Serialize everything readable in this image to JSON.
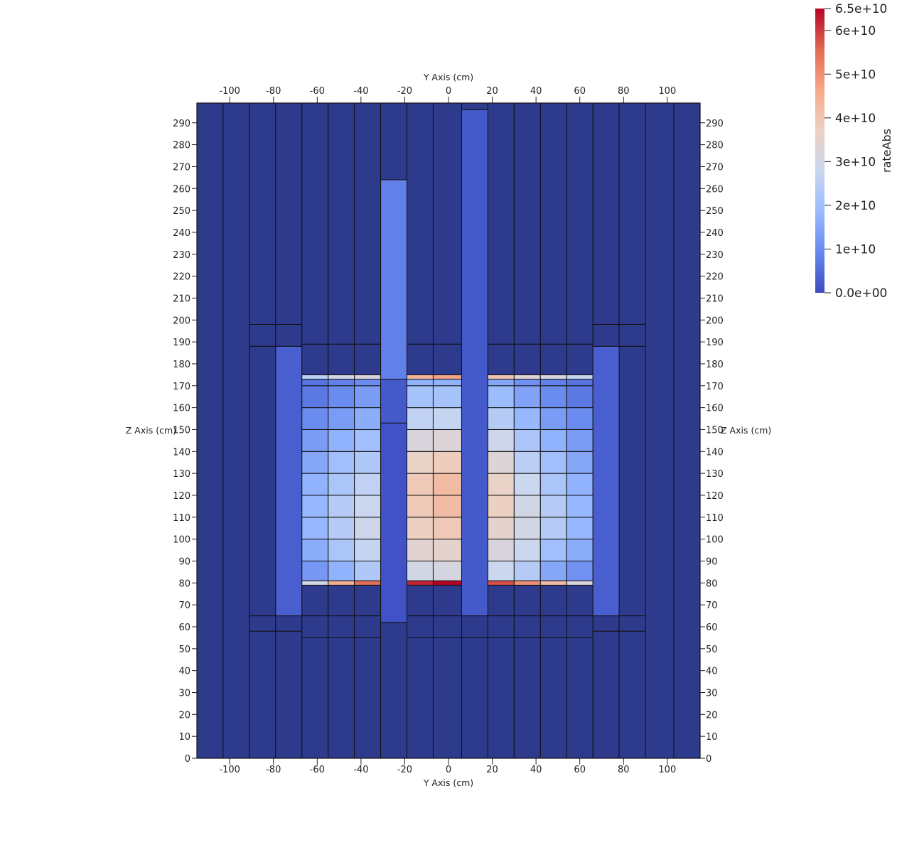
{
  "chart_data": {
    "type": "heatmap",
    "title": "",
    "x_axis": {
      "label": "Y Axis (cm)",
      "range": [
        -115,
        115
      ],
      "ticks": [
        -100,
        -80,
        -60,
        -40,
        -20,
        0,
        20,
        40,
        60,
        80,
        100
      ],
      "tick_labels": [
        "-100",
        "-80",
        "-60",
        "-40",
        "-20",
        "0",
        "20",
        "40",
        "60",
        "80",
        "100"
      ]
    },
    "y_axis": {
      "label": "Z Axis (cm)",
      "range": [
        0,
        299
      ],
      "ticks": [
        0,
        10,
        20,
        30,
        40,
        50,
        60,
        70,
        80,
        90,
        100,
        110,
        120,
        130,
        140,
        150,
        160,
        170,
        180,
        190,
        200,
        210,
        220,
        230,
        240,
        250,
        260,
        270,
        280,
        290
      ],
      "tick_labels": [
        "0",
        "10",
        "20",
        "30",
        "40",
        "50",
        "60",
        "70",
        "80",
        "90",
        "100",
        "110",
        "120",
        "130",
        "140",
        "150",
        "160",
        "170",
        "180",
        "190",
        "200",
        "210",
        "220",
        "230",
        "240",
        "250",
        "260",
        "270",
        "280",
        "290"
      ]
    },
    "colorbar": {
      "title": "rateAbs",
      "range": [
        0,
        65000000000
      ],
      "ticks": [
        0,
        10000000000,
        20000000000,
        30000000000,
        40000000000,
        50000000000,
        60000000000,
        65000000000
      ],
      "tick_labels": [
        "0.0e+00",
        "1e+10",
        "2e+10",
        "3e+10",
        "4e+10",
        "5e+10",
        "6e+10",
        "6.5e+10"
      ],
      "colormap": [
        "#3b4cc0",
        "#6788ee",
        "#9abbff",
        "#c9d7f0",
        "#edd1c2",
        "#f7a889",
        "#e26952",
        "#b40426"
      ],
      "orientation": "vertical",
      "placement": "top-right"
    },
    "grid": false,
    "columns": [
      {
        "y": [
          -115,
          -103
        ],
        "segments": [
          [
            0,
            299,
            0
          ]
        ]
      },
      {
        "y": [
          -103,
          -91
        ],
        "segments": [
          [
            0,
            299,
            0
          ]
        ]
      },
      {
        "y": [
          -91,
          -79
        ],
        "segments": [
          [
            0,
            58,
            0
          ],
          [
            58,
            65,
            0
          ],
          [
            65,
            188,
            0
          ],
          [
            188,
            198,
            0
          ],
          [
            198,
            299,
            0
          ]
        ]
      },
      {
        "y": [
          -79,
          -67
        ],
        "segments": [
          [
            0,
            58,
            0
          ],
          [
            58,
            65,
            0
          ],
          [
            65,
            188,
            3000000000
          ],
          [
            188,
            198,
            0
          ],
          [
            198,
            299,
            0
          ]
        ]
      },
      {
        "y": [
          -67,
          -55
        ],
        "segments": [
          [
            0,
            55,
            0
          ],
          [
            55,
            65,
            0
          ],
          [
            65,
            79,
            0
          ],
          [
            79,
            81,
            30000000000
          ],
          [
            81,
            90,
            12000000000
          ],
          [
            90,
            100,
            16000000000
          ],
          [
            100,
            110,
            18000000000
          ],
          [
            110,
            120,
            18000000000
          ],
          [
            120,
            130,
            17000000000
          ],
          [
            130,
            140,
            15000000000
          ],
          [
            140,
            150,
            13000000000
          ],
          [
            150,
            160,
            10000000000
          ],
          [
            160,
            170,
            7000000000
          ],
          [
            170,
            173,
            6000000000
          ],
          [
            173,
            175,
            25000000000
          ],
          [
            175,
            189,
            0
          ],
          [
            189,
            299,
            0
          ]
        ]
      },
      {
        "y": [
          -55,
          -43
        ],
        "segments": [
          [
            0,
            55,
            0
          ],
          [
            55,
            65,
            0
          ],
          [
            65,
            79,
            0
          ],
          [
            79,
            81,
            45000000000
          ],
          [
            81,
            90,
            17000000000
          ],
          [
            90,
            100,
            22000000000
          ],
          [
            100,
            110,
            24000000000
          ],
          [
            110,
            120,
            24000000000
          ],
          [
            120,
            130,
            22000000000
          ],
          [
            130,
            140,
            20000000000
          ],
          [
            140,
            150,
            17000000000
          ],
          [
            150,
            160,
            13000000000
          ],
          [
            160,
            170,
            10000000000
          ],
          [
            170,
            173,
            8000000000
          ],
          [
            173,
            175,
            30000000000
          ],
          [
            175,
            189,
            0
          ],
          [
            189,
            299,
            0
          ]
        ]
      },
      {
        "y": [
          -43,
          -31
        ],
        "segments": [
          [
            0,
            55,
            0
          ],
          [
            55,
            65,
            0
          ],
          [
            65,
            79,
            0
          ],
          [
            79,
            81,
            55000000000
          ],
          [
            81,
            90,
            23000000000
          ],
          [
            90,
            100,
            27000000000
          ],
          [
            100,
            110,
            29000000000
          ],
          [
            110,
            120,
            28000000000
          ],
          [
            120,
            130,
            26000000000
          ],
          [
            130,
            140,
            23000000000
          ],
          [
            140,
            150,
            20000000000
          ],
          [
            150,
            160,
            16000000000
          ],
          [
            160,
            170,
            13000000000
          ],
          [
            170,
            173,
            10000000000
          ],
          [
            173,
            175,
            32000000000
          ],
          [
            175,
            189,
            0
          ],
          [
            189,
            299,
            0
          ]
        ]
      },
      {
        "y": [
          -31,
          -19
        ],
        "segments": [
          [
            0,
            62,
            0
          ],
          [
            62,
            153,
            1000000000
          ],
          [
            153,
            173,
            2000000000
          ],
          [
            173,
            264,
            8000000000
          ],
          [
            264,
            299,
            0
          ]
        ]
      },
      {
        "y": [
          -19,
          -7
        ],
        "segments": [
          [
            0,
            55,
            0
          ],
          [
            55,
            65,
            0
          ],
          [
            65,
            79,
            0
          ],
          [
            79,
            81,
            62000000000
          ],
          [
            81,
            90,
            30000000000
          ],
          [
            90,
            100,
            34000000000
          ],
          [
            100,
            110,
            37000000000
          ],
          [
            110,
            120,
            39000000000
          ],
          [
            120,
            130,
            39000000000
          ],
          [
            130,
            140,
            36000000000
          ],
          [
            140,
            150,
            32000000000
          ],
          [
            150,
            160,
            26000000000
          ],
          [
            160,
            170,
            21000000000
          ],
          [
            170,
            173,
            17000000000
          ],
          [
            173,
            175,
            44000000000
          ],
          [
            175,
            189,
            0
          ],
          [
            189,
            299,
            0
          ]
        ]
      },
      {
        "y": [
          -7,
          6
        ],
        "segments": [
          [
            0,
            55,
            0
          ],
          [
            55,
            65,
            0
          ],
          [
            65,
            79,
            0
          ],
          [
            79,
            81,
            65000000000
          ],
          [
            81,
            90,
            31000000000
          ],
          [
            90,
            100,
            35000000000
          ],
          [
            100,
            110,
            39000000000
          ],
          [
            110,
            120,
            42000000000
          ],
          [
            120,
            130,
            42000000000
          ],
          [
            130,
            140,
            38000000000
          ],
          [
            140,
            150,
            33000000000
          ],
          [
            150,
            160,
            27000000000
          ],
          [
            160,
            170,
            21000000000
          ],
          [
            170,
            173,
            17000000000
          ],
          [
            173,
            175,
            47000000000
          ],
          [
            175,
            189,
            0
          ],
          [
            189,
            299,
            0
          ]
        ]
      },
      {
        "y": [
          6,
          18
        ],
        "segments": [
          [
            0,
            55,
            0
          ],
          [
            55,
            65,
            0
          ],
          [
            65,
            296,
            2000000000
          ],
          [
            296,
            299,
            0
          ]
        ]
      },
      {
        "y": [
          18,
          30
        ],
        "segments": [
          [
            0,
            55,
            0
          ],
          [
            55,
            65,
            0
          ],
          [
            65,
            79,
            0
          ],
          [
            79,
            81,
            58000000000
          ],
          [
            81,
            90,
            28000000000
          ],
          [
            90,
            100,
            32000000000
          ],
          [
            100,
            110,
            35000000000
          ],
          [
            110,
            120,
            37000000000
          ],
          [
            120,
            130,
            36000000000
          ],
          [
            130,
            140,
            33000000000
          ],
          [
            140,
            150,
            29000000000
          ],
          [
            150,
            160,
            24000000000
          ],
          [
            160,
            170,
            19000000000
          ],
          [
            170,
            173,
            15000000000
          ],
          [
            173,
            175,
            40000000000
          ],
          [
            175,
            189,
            0
          ],
          [
            189,
            299,
            0
          ]
        ]
      },
      {
        "y": [
          30,
          42
        ],
        "segments": [
          [
            0,
            55,
            0
          ],
          [
            55,
            65,
            0
          ],
          [
            65,
            79,
            0
          ],
          [
            79,
            81,
            50000000000
          ],
          [
            81,
            90,
            24000000000
          ],
          [
            90,
            100,
            28000000000
          ],
          [
            100,
            110,
            30000000000
          ],
          [
            110,
            120,
            30000000000
          ],
          [
            120,
            130,
            28000000000
          ],
          [
            130,
            140,
            25000000000
          ],
          [
            140,
            150,
            22000000000
          ],
          [
            150,
            160,
            18000000000
          ],
          [
            160,
            170,
            14000000000
          ],
          [
            170,
            173,
            11000000000
          ],
          [
            173,
            175,
            34000000000
          ],
          [
            175,
            189,
            0
          ],
          [
            189,
            299,
            0
          ]
        ]
      },
      {
        "y": [
          42,
          54
        ],
        "segments": [
          [
            0,
            55,
            0
          ],
          [
            55,
            65,
            0
          ],
          [
            65,
            79,
            0
          ],
          [
            79,
            81,
            42000000000
          ],
          [
            81,
            90,
            15000000000
          ],
          [
            90,
            100,
            20000000000
          ],
          [
            100,
            110,
            24000000000
          ],
          [
            110,
            120,
            24000000000
          ],
          [
            120,
            130,
            22000000000
          ],
          [
            130,
            140,
            20000000000
          ],
          [
            140,
            150,
            17000000000
          ],
          [
            150,
            160,
            13000000000
          ],
          [
            160,
            170,
            10000000000
          ],
          [
            170,
            173,
            8000000000
          ],
          [
            173,
            175,
            31000000000
          ],
          [
            175,
            189,
            0
          ],
          [
            189,
            299,
            0
          ]
        ]
      },
      {
        "y": [
          54,
          66
        ],
        "segments": [
          [
            0,
            55,
            0
          ],
          [
            55,
            65,
            0
          ],
          [
            65,
            79,
            0
          ],
          [
            79,
            81,
            32000000000
          ],
          [
            81,
            90,
            11000000000
          ],
          [
            90,
            100,
            16000000000
          ],
          [
            100,
            110,
            18000000000
          ],
          [
            110,
            120,
            18000000000
          ],
          [
            120,
            130,
            17000000000
          ],
          [
            130,
            140,
            15000000000
          ],
          [
            140,
            150,
            13000000000
          ],
          [
            150,
            160,
            10000000000
          ],
          [
            160,
            170,
            7000000000
          ],
          [
            170,
            173,
            6000000000
          ],
          [
            173,
            175,
            27000000000
          ],
          [
            175,
            189,
            0
          ],
          [
            189,
            299,
            0
          ]
        ]
      },
      {
        "y": [
          66,
          78
        ],
        "segments": [
          [
            0,
            58,
            0
          ],
          [
            58,
            65,
            0
          ],
          [
            65,
            188,
            3000000000
          ],
          [
            188,
            198,
            0
          ],
          [
            198,
            299,
            0
          ]
        ]
      },
      {
        "y": [
          78,
          90
        ],
        "segments": [
          [
            0,
            58,
            0
          ],
          [
            58,
            65,
            0
          ],
          [
            65,
            188,
            0
          ],
          [
            188,
            198,
            0
          ],
          [
            198,
            299,
            0
          ]
        ]
      },
      {
        "y": [
          90,
          103
        ],
        "segments": [
          [
            0,
            299,
            0
          ]
        ]
      },
      {
        "y": [
          103,
          115
        ],
        "segments": [
          [
            0,
            299,
            0
          ]
        ]
      }
    ]
  }
}
